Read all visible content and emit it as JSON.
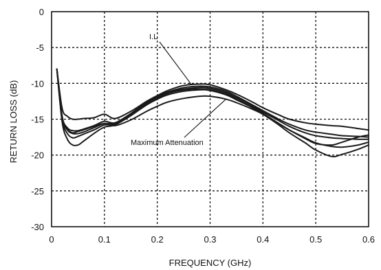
{
  "chart_data": {
    "type": "line",
    "xlabel": "FREQUENCY (GHz)",
    "ylabel": "RETURN LOSS (dB)",
    "xlim": [
      0,
      0.6
    ],
    "ylim": [
      -30,
      0
    ],
    "xticks": [
      0,
      0.1,
      0.2,
      0.3,
      0.4,
      0.5,
      0.6
    ],
    "xtick_labels": [
      "0",
      "0.1",
      "0.2",
      "0.3",
      "0.4",
      "0.5",
      "0.6"
    ],
    "yticks": [
      0,
      -5,
      -10,
      -15,
      -20,
      -25,
      -30
    ],
    "ytick_labels": [
      "0",
      "-5",
      "-10",
      "-15",
      "-20",
      "-25",
      "-30"
    ],
    "grid": true,
    "annotations": [
      {
        "text": "I.L",
        "points_to": [
          0.265,
          -10.2
        ]
      },
      {
        "text": "Maximum Attenuation",
        "points_to": [
          0.33,
          -12.2
        ]
      }
    ],
    "series": [
      {
        "x": [
          0.01,
          0.02,
          0.03,
          0.04,
          0.05,
          0.06,
          0.08,
          0.1,
          0.12,
          0.15,
          0.18,
          0.2,
          0.22,
          0.25,
          0.28,
          0.3,
          0.33,
          0.35,
          0.38,
          0.4,
          0.43,
          0.45,
          0.48,
          0.5,
          0.53,
          0.55,
          0.58,
          0.6
        ],
        "y": [
          -8,
          -13.5,
          -14.6,
          -15,
          -15,
          -14.9,
          -14.8,
          -14.3,
          -14.9,
          -13.9,
          -12.5,
          -11.7,
          -11,
          -10.3,
          -10.1,
          -10.2,
          -10.9,
          -11.5,
          -12.6,
          -13.4,
          -14.4,
          -15,
          -15.5,
          -15.7,
          -15.9,
          -16,
          -16.3,
          -16.5
        ]
      },
      {
        "x": [
          0.01,
          0.02,
          0.03,
          0.04,
          0.05,
          0.06,
          0.08,
          0.1,
          0.12,
          0.15,
          0.18,
          0.2,
          0.22,
          0.25,
          0.28,
          0.3,
          0.33,
          0.35,
          0.38,
          0.4,
          0.43,
          0.45,
          0.48,
          0.5,
          0.53,
          0.55,
          0.58,
          0.6
        ],
        "y": [
          -8,
          -14.6,
          -16.2,
          -16.6,
          -16.6,
          -16.4,
          -15.9,
          -15.3,
          -15.5,
          -14.2,
          -12.6,
          -11.8,
          -11.2,
          -10.6,
          -10.4,
          -10.5,
          -11.1,
          -11.8,
          -13,
          -13.8,
          -15,
          -15.7,
          -16.5,
          -16.8,
          -17.1,
          -17.3,
          -17.4,
          -17.5
        ]
      },
      {
        "x": [
          0.01,
          0.02,
          0.03,
          0.04,
          0.05,
          0.06,
          0.08,
          0.1,
          0.12,
          0.15,
          0.18,
          0.2,
          0.22,
          0.25,
          0.28,
          0.3,
          0.33,
          0.35,
          0.38,
          0.4,
          0.43,
          0.45,
          0.48,
          0.5,
          0.53,
          0.55,
          0.58,
          0.6
        ],
        "y": [
          -8,
          -14.8,
          -16.5,
          -17,
          -17,
          -16.8,
          -16.2,
          -15.6,
          -15.6,
          -14.4,
          -12.8,
          -12,
          -11.3,
          -10.8,
          -10.6,
          -10.7,
          -11.3,
          -12,
          -13.1,
          -14,
          -15.2,
          -16,
          -16.9,
          -17.3,
          -17.6,
          -17.7,
          -17.8,
          -17.8
        ]
      },
      {
        "x": [
          0.01,
          0.02,
          0.03,
          0.04,
          0.05,
          0.06,
          0.08,
          0.1,
          0.12,
          0.15,
          0.18,
          0.2,
          0.22,
          0.25,
          0.28,
          0.3,
          0.33,
          0.35,
          0.38,
          0.4,
          0.43,
          0.45,
          0.48,
          0.5,
          0.53,
          0.55,
          0.58,
          0.6
        ],
        "y": [
          -8,
          -15,
          -17,
          -17.6,
          -17.4,
          -17.1,
          -16.5,
          -15.8,
          -15.7,
          -14.5,
          -12.9,
          -12.1,
          -11.4,
          -10.9,
          -10.8,
          -10.9,
          -11.5,
          -12.2,
          -13.3,
          -14.2,
          -15.6,
          -16.5,
          -17.6,
          -18.3,
          -18.8,
          -18.9,
          -18.6,
          -18.2
        ]
      },
      {
        "x": [
          0.01,
          0.02,
          0.03,
          0.04,
          0.05,
          0.06,
          0.08,
          0.1,
          0.12,
          0.15,
          0.18,
          0.2,
          0.22,
          0.25,
          0.28,
          0.3,
          0.33,
          0.35,
          0.38,
          0.4,
          0.43,
          0.45,
          0.48,
          0.5,
          0.53,
          0.55,
          0.58,
          0.6
        ],
        "y": [
          -8,
          -15.4,
          -17.8,
          -18.6,
          -18.6,
          -18.1,
          -17,
          -16.1,
          -15.8,
          -14.5,
          -13,
          -12.2,
          -11.6,
          -11.1,
          -10.9,
          -11,
          -11.6,
          -12.3,
          -13.4,
          -14.3,
          -15.8,
          -16.9,
          -18.3,
          -19.3,
          -20.2,
          -19.9,
          -19.2,
          -18.6
        ]
      },
      {
        "x": [
          0.01,
          0.02,
          0.03,
          0.04,
          0.05,
          0.06,
          0.08,
          0.1,
          0.12,
          0.15,
          0.18,
          0.2,
          0.22,
          0.25,
          0.28,
          0.3,
          0.33,
          0.35,
          0.38,
          0.4,
          0.43,
          0.45,
          0.48,
          0.5,
          0.53,
          0.55,
          0.58,
          0.6
        ],
        "y": [
          -8,
          -14.7,
          -16.4,
          -16.9,
          -16.7,
          -16.5,
          -16,
          -15.6,
          -15.9,
          -15.1,
          -13.9,
          -13.2,
          -12.6,
          -12.1,
          -11.8,
          -11.8,
          -12.2,
          -12.7,
          -13.6,
          -14.3,
          -15.6,
          -16.5,
          -17.7,
          -18.4,
          -18.6,
          -18.2,
          -17.5,
          -17.2
        ]
      }
    ]
  }
}
